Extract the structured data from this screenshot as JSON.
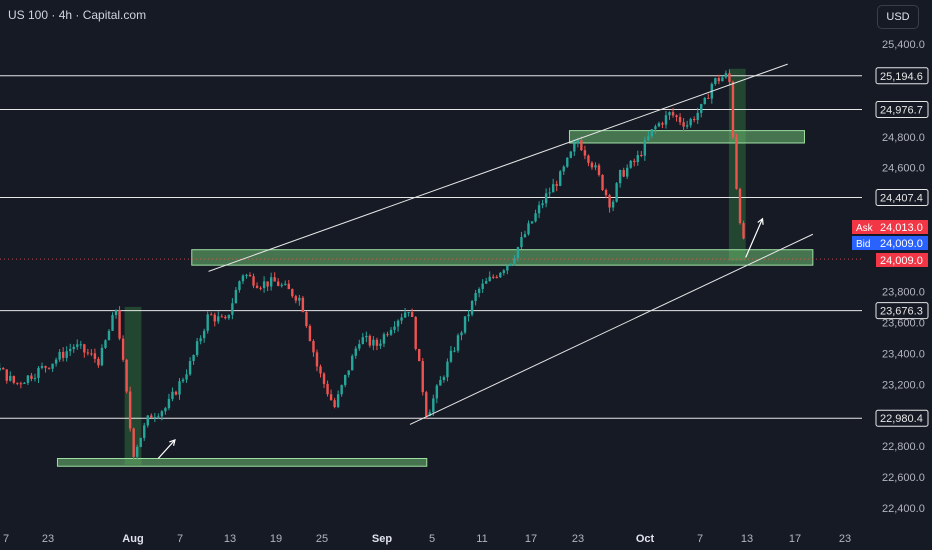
{
  "header": {
    "title": "US 100 · 4h · Capital.com",
    "currency_label": "USD"
  },
  "colors": {
    "background": "#161a25",
    "up": "#26a69a",
    "down": "#ef5350",
    "zone": "#6fbf73",
    "ask": "#f23645",
    "bid": "#2962ff"
  },
  "quote": {
    "ask_label": "Ask",
    "ask_value": "24,013.0",
    "bid_label": "Bid",
    "bid_value": "24,009.0",
    "last_value": "24,009.0"
  },
  "chart_data": {
    "type": "candlestick",
    "instrument": "US 100",
    "interval": "4h",
    "ylim": [
      22300,
      25500
    ],
    "y_ticks": [
      "25,400.0",
      "24,800.0",
      "24,600.0",
      "23,800.0",
      "23,600.0",
      "23,400.0",
      "23,200.0",
      "22,800.0",
      "22,600.0",
      "22,400.0"
    ],
    "x_ticks": [
      "7",
      "23",
      "Aug",
      "7",
      "13",
      "19",
      "25",
      "Sep",
      "5",
      "11",
      "17",
      "23",
      "Oct",
      "7",
      "13",
      "17",
      "23"
    ],
    "horizontal_levels": [
      {
        "value": 25194.6,
        "label": "25,194.6"
      },
      {
        "value": 24976.7,
        "label": "24,976.7"
      },
      {
        "value": 24407.4,
        "label": "24,407.4"
      },
      {
        "value": 23676.3,
        "label": "23,676.3"
      },
      {
        "value": 22980.4,
        "label": "22,980.4"
      }
    ],
    "zones": [
      {
        "from_date": "Sep 22",
        "to_date": "Oct 20",
        "low": 24760,
        "high": 24840
      },
      {
        "from_date": "Aug 8",
        "to_date": "Oct 21",
        "low": 23970,
        "high": 24070
      },
      {
        "from_date": "Jul 23",
        "to_date": "Sep 5",
        "low": 22670,
        "high": 22720
      }
    ],
    "highlight_bands": [
      {
        "from_date": "Jul 31",
        "to_date": "Aug 2",
        "low": 22680,
        "high": 23700
      },
      {
        "from_date": "Oct 11",
        "to_date": "Oct 13",
        "low": 24000,
        "high": 25240
      }
    ],
    "channel": {
      "upper": [
        [
          "Aug 10",
          23930
        ],
        [
          "Oct 18",
          25270
        ]
      ],
      "lower": [
        [
          "Sep 3",
          22940
        ],
        [
          "Oct 21",
          24170
        ]
      ]
    },
    "arrows": [
      {
        "from": [
          "Aug 4",
          22720
        ],
        "to": [
          "Aug 6",
          22840
        ]
      },
      {
        "from": [
          "Oct 13",
          24020
        ],
        "to": [
          "Oct 15",
          24270
        ]
      }
    ],
    "series": [
      {
        "date": "Jul 1",
        "value": 22900
      },
      {
        "date": "Jul 4",
        "value": 23100
      },
      {
        "date": "Jul 8",
        "value": 23220
      },
      {
        "date": "Jul 11",
        "value": 23060
      },
      {
        "date": "Jul 15",
        "value": 23350
      },
      {
        "date": "Jul 18",
        "value": 23200
      },
      {
        "date": "Jul 22",
        "value": 23330
      },
      {
        "date": "Jul 25",
        "value": 23450
      },
      {
        "date": "Jul 28",
        "value": 23350
      },
      {
        "date": "Jul 30",
        "value": 23690
      },
      {
        "date": "Jul 31",
        "value": 23250
      },
      {
        "date": "Aug 1",
        "value": 22750
      },
      {
        "date": "Aug 3",
        "value": 23000
      },
      {
        "date": "Aug 5",
        "value": 23050
      },
      {
        "date": "Aug 7",
        "value": 23250
      },
      {
        "date": "Aug 8",
        "value": 23350
      },
      {
        "date": "Aug 10",
        "value": 23650
      },
      {
        "date": "Aug 12",
        "value": 23600
      },
      {
        "date": "Aug 14",
        "value": 23920
      },
      {
        "date": "Aug 16",
        "value": 23850
      },
      {
        "date": "Aug 18",
        "value": 23860
      },
      {
        "date": "Aug 21",
        "value": 23750
      },
      {
        "date": "Aug 23",
        "value": 23300
      },
      {
        "date": "Aug 25",
        "value": 23050
      },
      {
        "date": "Aug 26",
        "value": 23200
      },
      {
        "date": "Aug 28",
        "value": 23500
      },
      {
        "date": "Aug 30",
        "value": 23450
      },
      {
        "date": "Sep 1",
        "value": 23600
      },
      {
        "date": "Sep 3",
        "value": 23700
      },
      {
        "date": "Sep 5",
        "value": 23000
      },
      {
        "date": "Sep 8",
        "value": 23400
      },
      {
        "date": "Sep 11",
        "value": 23800
      },
      {
        "date": "Sep 13",
        "value": 23900
      },
      {
        "date": "Sep 15",
        "value": 24000
      },
      {
        "date": "Sep 17",
        "value": 24200
      },
      {
        "date": "Sep 19",
        "value": 24400
      },
      {
        "date": "Sep 21",
        "value": 24550
      },
      {
        "date": "Sep 23",
        "value": 24780
      },
      {
        "date": "Sep 25",
        "value": 24600
      },
      {
        "date": "Sep 27",
        "value": 24350
      },
      {
        "date": "Sep 28",
        "value": 24550
      },
      {
        "date": "Sep 30",
        "value": 24650
      },
      {
        "date": "Oct 2",
        "value": 24850
      },
      {
        "date": "Oct 4",
        "value": 24950
      },
      {
        "date": "Oct 6",
        "value": 24880
      },
      {
        "date": "Oct 8",
        "value": 25000
      },
      {
        "date": "Oct 9",
        "value": 25150
      },
      {
        "date": "Oct 10",
        "value": 25180
      },
      {
        "date": "Oct 11",
        "value": 25200
      },
      {
        "date": "Oct 12",
        "value": 24400
      },
      {
        "date": "Oct 13",
        "value": 24009
      }
    ]
  }
}
